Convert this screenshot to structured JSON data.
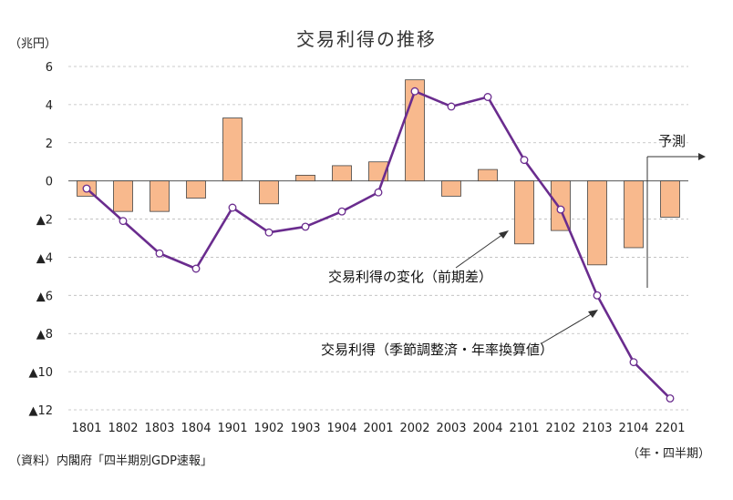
{
  "chart_data": {
    "type": "bar+line",
    "title": "交易利得の推移",
    "ylabel": "（兆円）",
    "xlabel": "（年・四半期）",
    "categories": [
      "1801",
      "1802",
      "1803",
      "1804",
      "1901",
      "1902",
      "1903",
      "1904",
      "2001",
      "2002",
      "2003",
      "2004",
      "2101",
      "2102",
      "2103",
      "2104",
      "2201"
    ],
    "ylim": [
      -12,
      6
    ],
    "yticks": [
      6,
      4,
      2,
      0,
      -2,
      -4,
      -6,
      -8,
      -10,
      -12
    ],
    "ytick_labels": [
      "6",
      "4",
      "2",
      "0",
      "▲2",
      "▲4",
      "▲6",
      "▲8",
      "▲10",
      "▲12"
    ],
    "grid": true,
    "series": [
      {
        "name": "交易利得の変化（前期差）",
        "kind": "bar",
        "color": "#f8b98d",
        "values": [
          -0.8,
          -1.6,
          -1.6,
          -0.9,
          3.3,
          -1.2,
          0.3,
          0.8,
          1.0,
          5.3,
          -0.8,
          0.6,
          -3.3,
          -2.6,
          -4.4,
          -3.5,
          -1.9
        ]
      },
      {
        "name": "交易利得（季節調整済・年率換算値）",
        "kind": "line",
        "color": "#6a2c8e",
        "values": [
          -0.4,
          -2.1,
          -3.8,
          -4.6,
          -1.4,
          -2.7,
          -2.4,
          -1.6,
          -0.6,
          4.7,
          3.9,
          4.4,
          1.1,
          -1.5,
          -6.0,
          -9.5,
          -11.4
        ]
      }
    ],
    "annotations": {
      "forecast": "予測",
      "forecast_from": "2201",
      "bar_label": "交易利得の変化（前期差）",
      "line_label": "交易利得（季節調整済・年率換算値）"
    },
    "source": "（資料）内閣府「四半期別GDP速報」"
  }
}
